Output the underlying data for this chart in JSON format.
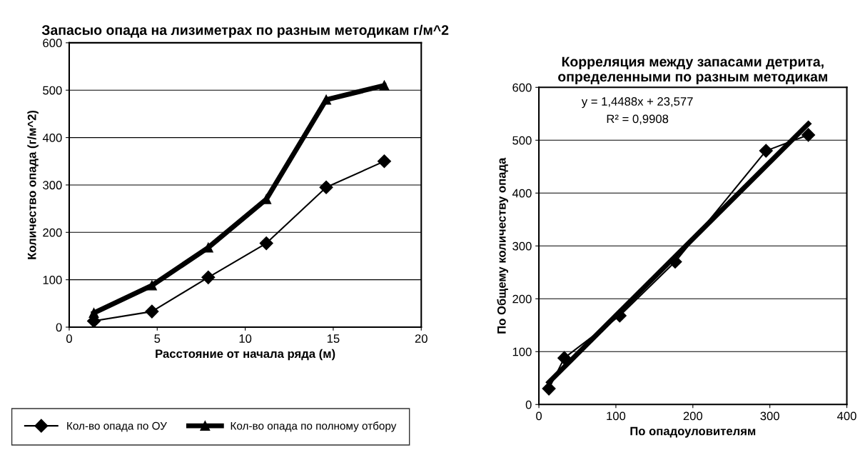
{
  "chart_data": [
    {
      "type": "line",
      "title": "Запасыо опада на лизиметрах по разным методикам г/м^2",
      "xlabel": "Расстояние от начала ряда (м)",
      "ylabel": "Количество опада (г/м^2)",
      "x": [
        1.4,
        4.7,
        7.9,
        11.2,
        14.6,
        17.9
      ],
      "series": [
        {
          "name": "Кол-во опада по ОУ",
          "color": "#000000",
          "marker": "diamond",
          "values": [
            13,
            33,
            105,
            177,
            295,
            350
          ]
        },
        {
          "name": "Кол-во опада по полному отбору",
          "color": "#000000",
          "marker": "triangle",
          "values": [
            30,
            88,
            168,
            270,
            480,
            510
          ]
        }
      ],
      "xlim": [
        0,
        20
      ],
      "xticks": [
        0,
        5,
        10,
        15,
        20
      ],
      "ylim": [
        0,
        600
      ],
      "yticks": [
        0,
        100,
        200,
        300,
        400,
        500,
        600
      ],
      "grid": "y",
      "legend": "bottom"
    },
    {
      "type": "line",
      "title": "Корреляция между запасами детрита, определенными по разным методикам",
      "xlabel": "По опадоуловителям",
      "ylabel": "По Общему количеству опада",
      "series": [
        {
          "color": "#000000",
          "marker": "diamond",
          "x": [
            13,
            33,
            105,
            177,
            295,
            350
          ],
          "values": [
            30,
            88,
            168,
            270,
            480,
            510
          ]
        },
        {
          "color": "#000000",
          "marker": "none",
          "x": [
            13,
            350
          ],
          "values": [
            42,
            531
          ]
        }
      ],
      "annotations": [
        "y = 1,4488x + 23,577",
        "R² = 0,9908"
      ],
      "xlim": [
        0,
        400
      ],
      "xticks": [
        0,
        100,
        200,
        300,
        400
      ],
      "ylim": [
        0,
        600
      ],
      "yticks": [
        0,
        100,
        200,
        300,
        400,
        500,
        600
      ],
      "grid": "y"
    }
  ]
}
